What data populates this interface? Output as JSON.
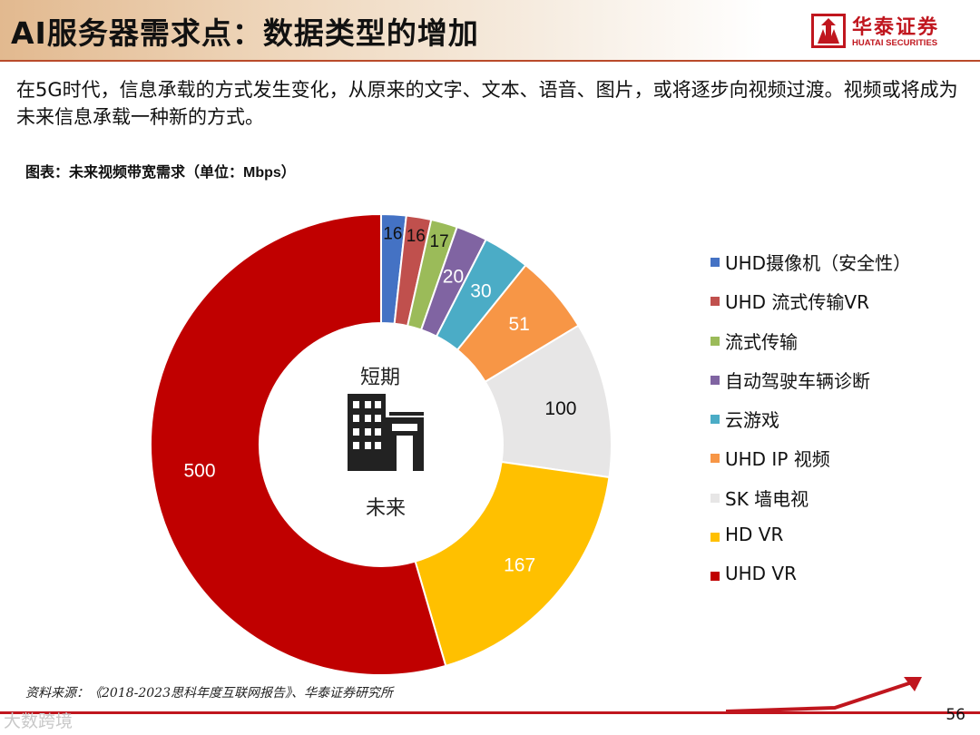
{
  "header": {
    "title": "AI服务器需求点：数据类型的增加",
    "logo_cn": "华泰证券",
    "logo_en": "HUATAI SECURITIES"
  },
  "intro": "在5G时代，信息承载的方式发生变化，从原来的文字、文本、语音、图片，或将逐步向视频过渡。视频或将成为未来信息承载一种新的方式。",
  "chart_caption": {
    "prefix": "图表：未来视频带宽需求（单位：",
    "unit": "Mbps",
    "suffix": "）"
  },
  "chart_data": {
    "type": "pie",
    "variant": "donut",
    "title": "未来视频带宽需求（单位：Mbps）",
    "categories": [
      "UHD摄像机（安全性）",
      "UHD 流式传输VR",
      "流式传输",
      "自动驾驶车辆诊断",
      "云游戏",
      "UHD IP 视频",
      "SK 墙电视",
      "HD VR",
      "UHD VR"
    ],
    "values": [
      16,
      16,
      17,
      20,
      30,
      51,
      100,
      167,
      500
    ],
    "colors": [
      "#4472c4",
      "#c0504d",
      "#9bbb59",
      "#8064a2",
      "#4bacc6",
      "#f79646",
      "#e7e6e6",
      "#ffc000",
      "#c00000"
    ],
    "label_colors": [
      "#111111",
      "#111111",
      "#111111",
      "#ffffff",
      "#ffffff",
      "#ffffff",
      "#111111",
      "#ffffff",
      "#ffffff"
    ],
    "legend_position": "right",
    "center_top_text": "短期",
    "center_bottom_text": "未来",
    "center_icon": "building-icon"
  },
  "source": "资料来源：《2018-2023思科年度互联网报告》、华泰证券研究所",
  "page_number": "56",
  "watermark": "大数跨境"
}
